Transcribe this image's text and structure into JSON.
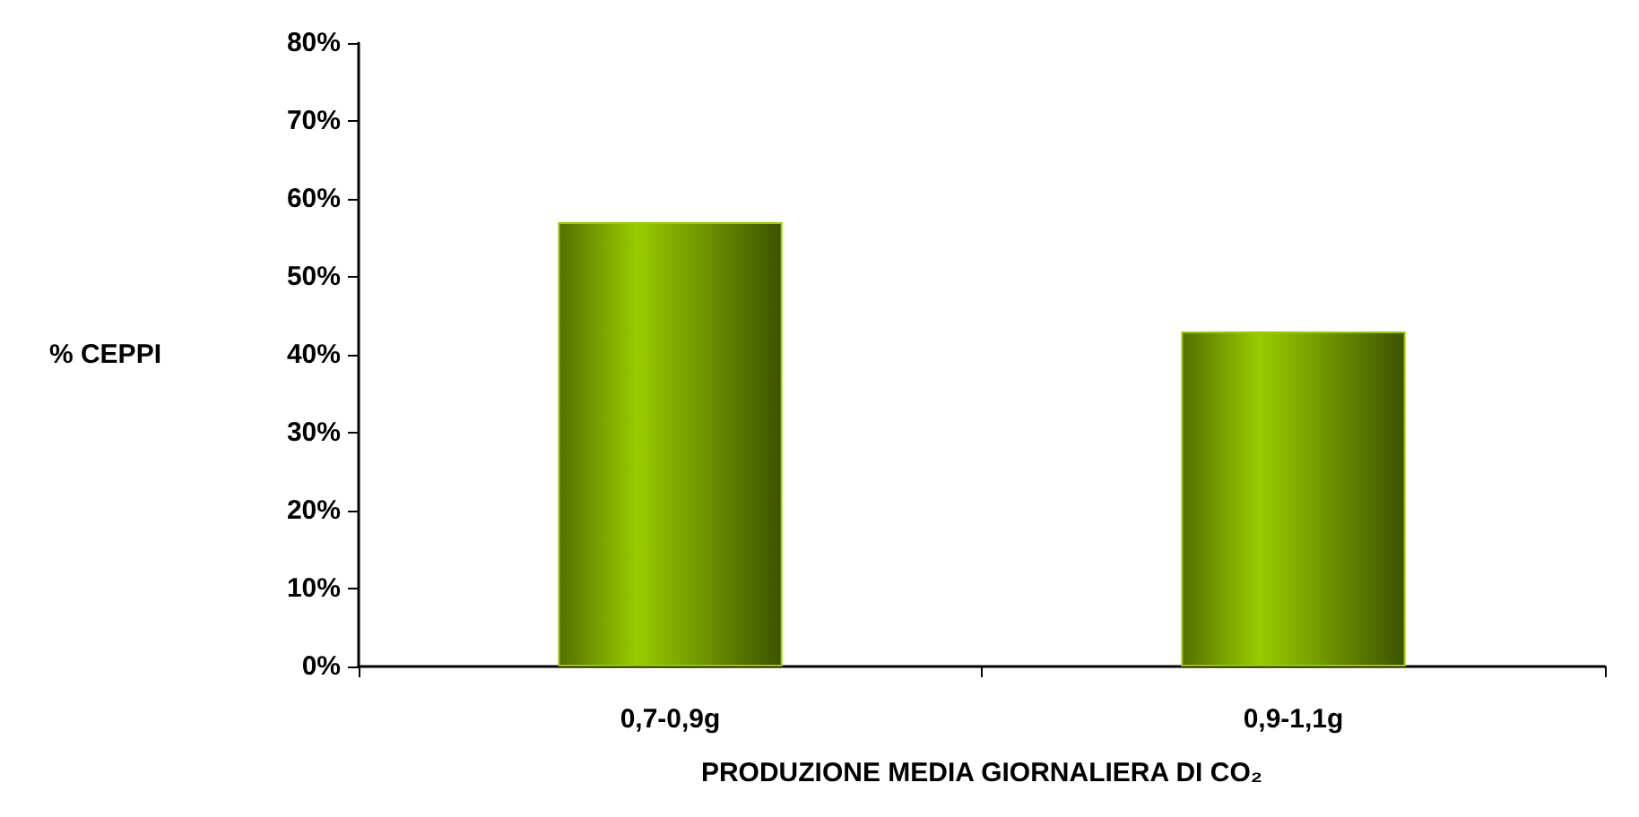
{
  "chart_data": {
    "type": "bar",
    "xlabel": "PRODUZIONE MEDIA GIORNALIERA DI CO₂",
    "ylabel": "% CEPPI",
    "categories": [
      "0,7-0,9g",
      "0,9-1,1g"
    ],
    "values": [
      57,
      43
    ],
    "color": "#99cc00",
    "ylim": [
      0,
      80
    ],
    "yticks": [
      {
        "value": 0,
        "label": "0%"
      },
      {
        "value": 10,
        "label": "10%"
      },
      {
        "value": 20,
        "label": "20%"
      },
      {
        "value": 30,
        "label": "30%"
      },
      {
        "value": 40,
        "label": "40%"
      },
      {
        "value": 50,
        "label": "50%"
      },
      {
        "value": 60,
        "label": "60%"
      },
      {
        "value": 70,
        "label": "70%"
      },
      {
        "value": 80,
        "label": "80%"
      }
    ],
    "grid": false
  }
}
